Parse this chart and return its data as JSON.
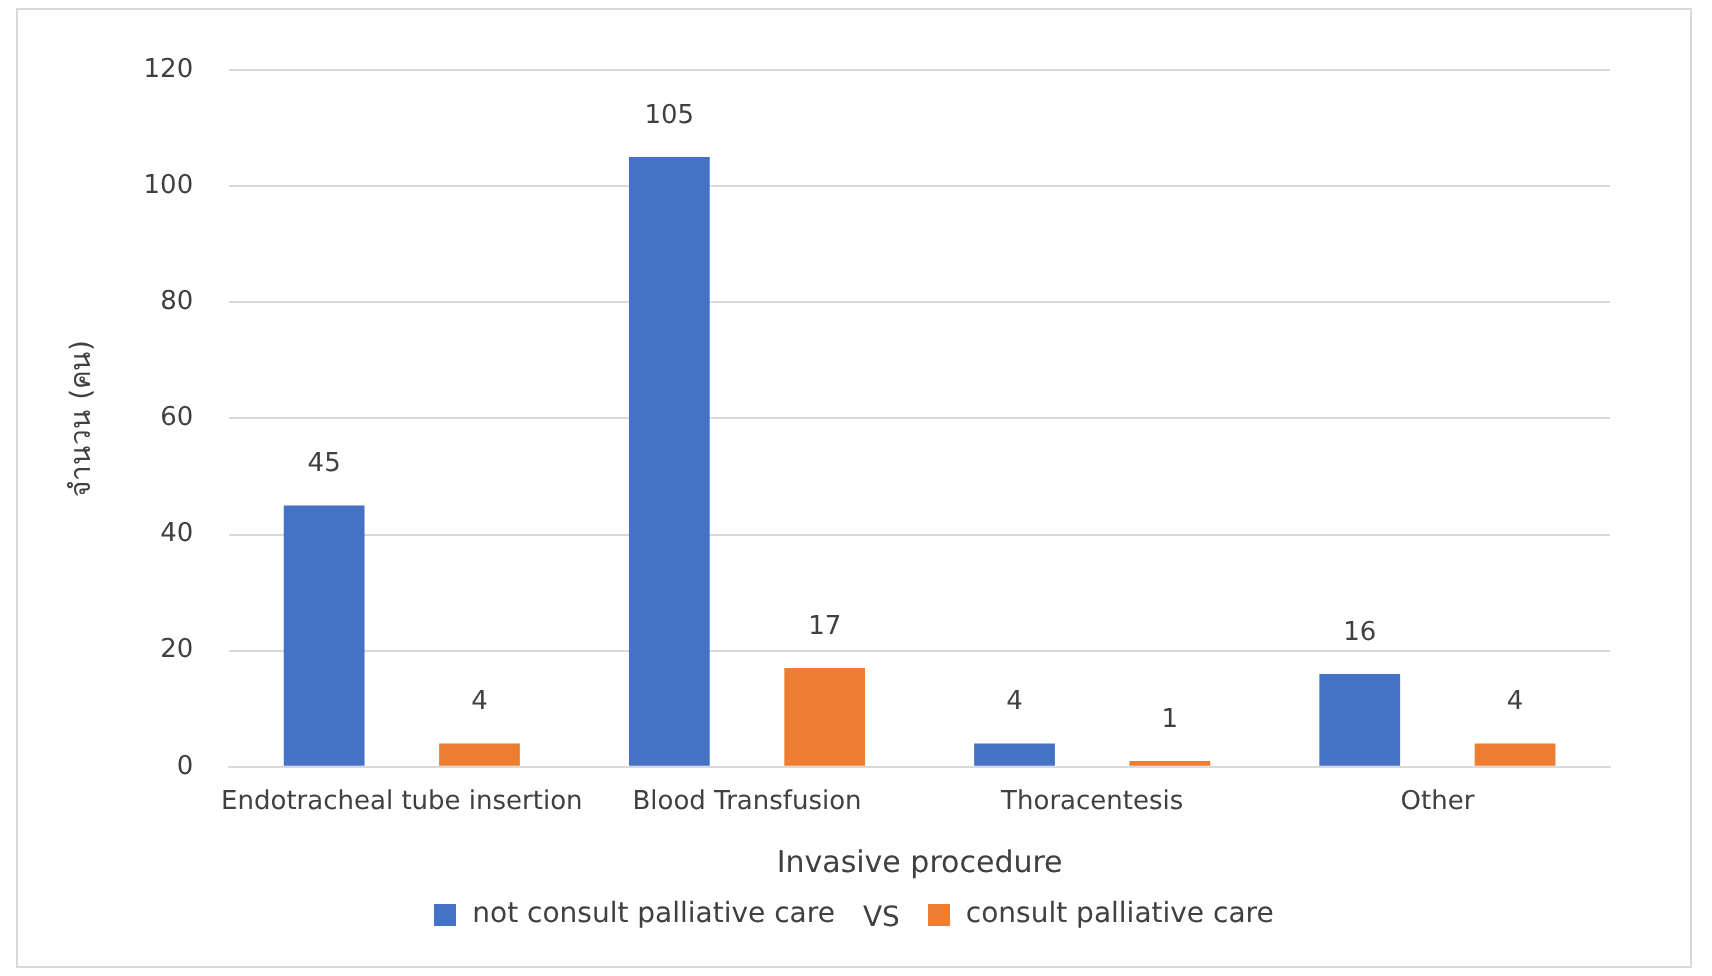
{
  "chart_data": {
    "type": "bar",
    "xlabel": "Invasive procedure",
    "ylabel": "จำนวน (คน)",
    "categories": [
      "Endotracheal tube insertion",
      "Blood Transfusion",
      "Thoracentesis",
      "Other"
    ],
    "series": [
      {
        "name": "not consult palliative care",
        "color": "#4472c4",
        "values": [
          45,
          105,
          4,
          16
        ]
      },
      {
        "name": "consult palliative care",
        "color": "#ed7d31",
        "values": [
          4,
          17,
          1,
          4
        ]
      }
    ],
    "ylim": [
      0,
      120
    ],
    "yticks": [
      0,
      20,
      40,
      60,
      80,
      100,
      120
    ],
    "grid": "y",
    "legend": "bottom",
    "data_labels": true,
    "annotations": [
      "VS"
    ]
  }
}
